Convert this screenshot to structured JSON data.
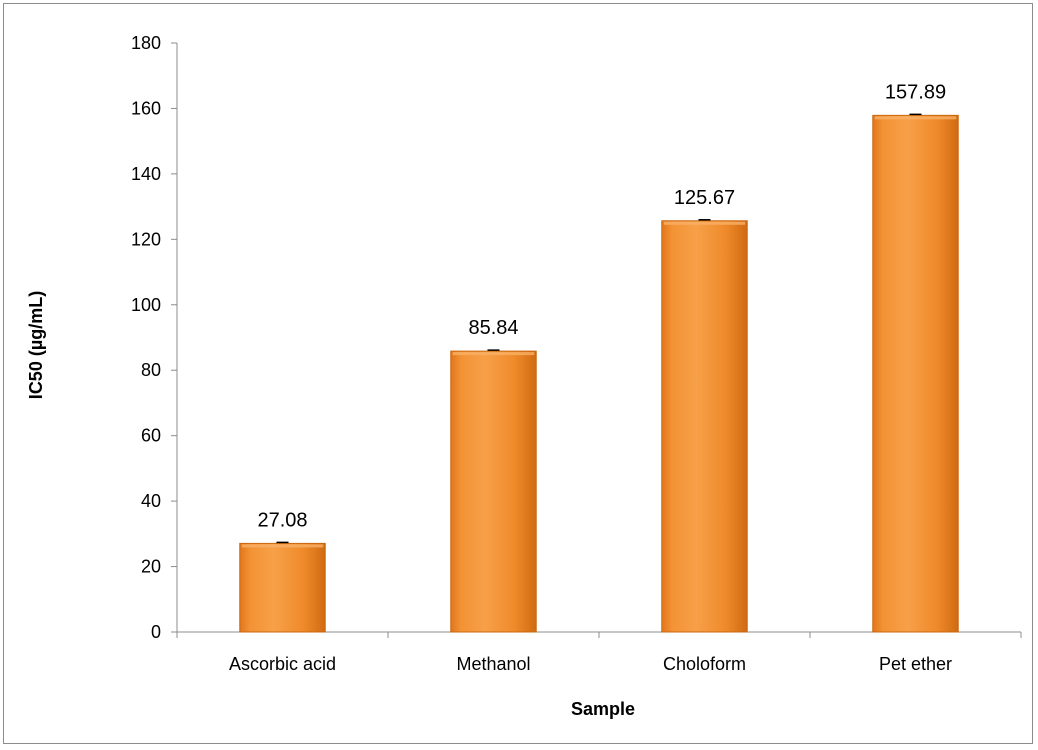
{
  "chart_data": {
    "type": "bar",
    "title": "",
    "xlabel": "Sample",
    "ylabel": "IC50 (µg/mL)",
    "categories": [
      "Ascorbic acid",
      "Methanol",
      "Choloform",
      "Pet ether"
    ],
    "values": [
      27.08,
      85.84,
      125.67,
      157.89
    ],
    "data_labels": [
      "27.08",
      "85.84",
      "125.67",
      "157.89"
    ],
    "ylim": [
      0,
      180
    ],
    "yticks": [
      0,
      20,
      40,
      60,
      80,
      100,
      120,
      140,
      160,
      180
    ],
    "grid": false,
    "legend": "none",
    "error_bars": true,
    "bar_color": "#f08a24"
  }
}
